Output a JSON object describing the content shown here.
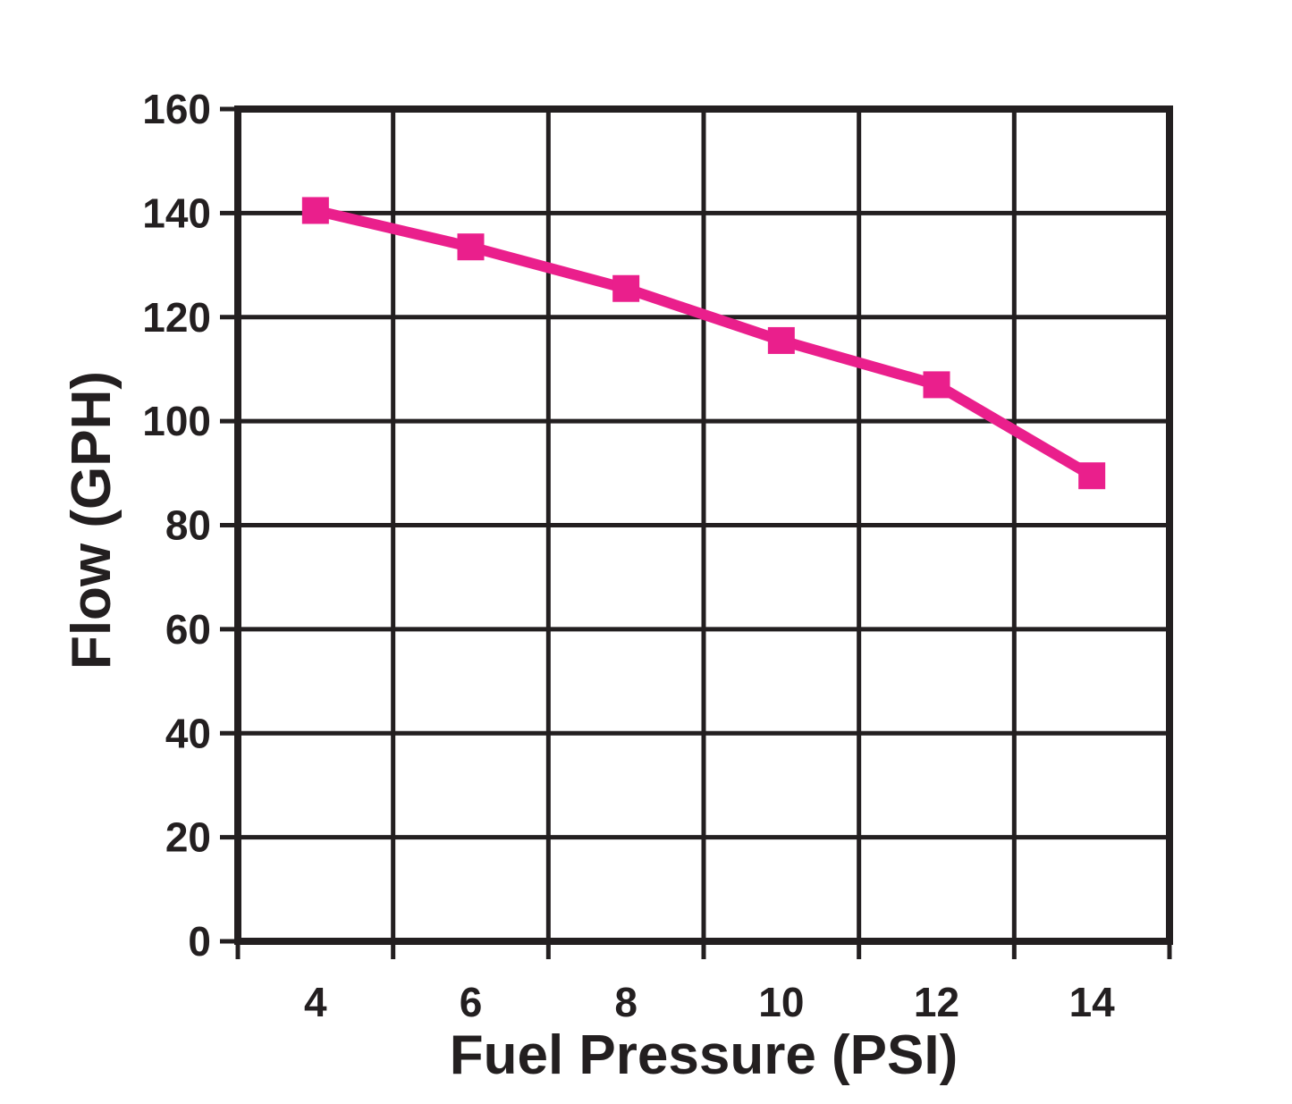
{
  "page": {
    "background_color": "#ffffff"
  },
  "chart_data": {
    "type": "line",
    "title": "",
    "xlabel": "Fuel Pressure (PSI)",
    "ylabel": "Flow (GPH)",
    "x": [
      4,
      6,
      8,
      10,
      12,
      14
    ],
    "y": [
      140.5,
      133.5,
      125.5,
      115.5,
      107,
      89.5
    ],
    "xlim": [
      3,
      15
    ],
    "ylim": [
      0,
      160
    ],
    "x_gridline_values": [
      3,
      5,
      7,
      9,
      11,
      13,
      15
    ],
    "x_tick_values": [
      4,
      6,
      8,
      10,
      12,
      14
    ],
    "x_tick_labels": [
      "4",
      "6",
      "8",
      "10",
      "12",
      "14"
    ],
    "y_tick_values": [
      0,
      20,
      40,
      60,
      80,
      100,
      120,
      140,
      160
    ],
    "y_tick_labels": [
      "0",
      "20",
      "40",
      "60",
      "80",
      "100",
      "120",
      "140",
      "160"
    ],
    "grid": true,
    "legend_position": "none",
    "marker": "square",
    "line_color": "#EA1F8C",
    "marker_color": "#EA1F8C",
    "axis_color": "#231F20",
    "grid_color": "#231F20",
    "text_color": "#231F20"
  }
}
